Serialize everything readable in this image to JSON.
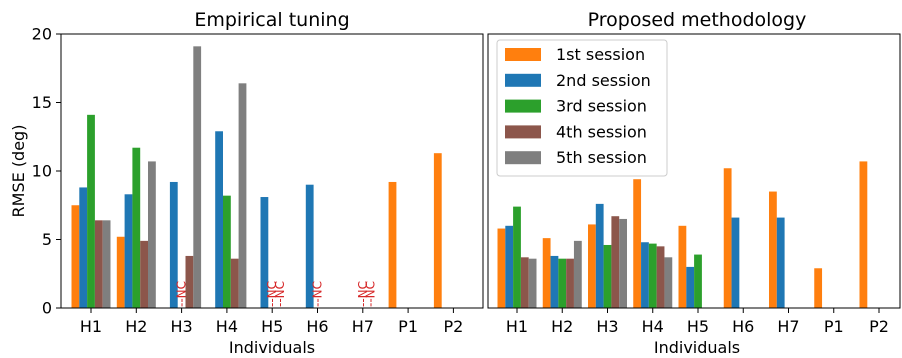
{
  "chart_data": [
    {
      "type": "bar",
      "title": "Empirical tuning",
      "xlabel": "Individuals",
      "ylabel": "RMSE (deg)",
      "ylim": [
        0,
        20
      ],
      "yticks": [
        0,
        5,
        10,
        15,
        20
      ],
      "categories": [
        "H1",
        "H2",
        "H3",
        "H4",
        "H5",
        "H6",
        "H7",
        "P1",
        "P2"
      ],
      "grid": false,
      "legend": "none",
      "series": [
        {
          "name": "1st session",
          "color": "#ff7f0e",
          "values": [
            7.5,
            5.2,
            null,
            null,
            null,
            null,
            null,
            9.2,
            11.3
          ]
        },
        {
          "name": "2nd session",
          "color": "#1f77b4",
          "values": [
            8.8,
            8.3,
            9.2,
            12.9,
            8.1,
            9.0,
            null,
            null,
            null
          ]
        },
        {
          "name": "3rd session",
          "color": "#2ca02c",
          "values": [
            14.1,
            11.7,
            null,
            8.2,
            null,
            null,
            null,
            null,
            null
          ]
        },
        {
          "name": "4th session",
          "color": "#8c564b",
          "values": [
            6.4,
            4.9,
            3.8,
            3.6,
            null,
            null,
            null,
            null,
            null
          ]
        },
        {
          "name": "5th session",
          "color": "#7f7f7f",
          "values": [
            6.4,
            10.7,
            19.1,
            16.4,
            null,
            null,
            null,
            null,
            null
          ]
        }
      ],
      "annotations": [
        {
          "text": "--NC",
          "category": "H3",
          "series": "3rd session"
        },
        {
          "text": "--NC",
          "category": "H5",
          "series": "3rd session"
        },
        {
          "text": "--NC",
          "category": "H5",
          "series": "4th session"
        },
        {
          "text": "--NC",
          "category": "H6",
          "series": "3rd session"
        },
        {
          "text": "--NC",
          "category": "H7",
          "series": "3rd session"
        },
        {
          "text": "--NC",
          "category": "H7",
          "series": "4th session"
        }
      ]
    },
    {
      "type": "bar",
      "title": "Proposed methodology",
      "xlabel": "Individuals",
      "ylabel": "",
      "ylim": [
        0,
        20
      ],
      "categories": [
        "H1",
        "H2",
        "H3",
        "H4",
        "H5",
        "H6",
        "H7",
        "P1",
        "P2"
      ],
      "grid": false,
      "legend": "upper-left",
      "series": [
        {
          "name": "1st session",
          "color": "#ff7f0e",
          "values": [
            5.8,
            5.1,
            6.1,
            9.4,
            6.0,
            10.2,
            8.5,
            2.9,
            10.7
          ]
        },
        {
          "name": "2nd session",
          "color": "#1f77b4",
          "values": [
            6.0,
            3.8,
            7.6,
            4.8,
            3.0,
            6.6,
            6.6,
            null,
            null
          ]
        },
        {
          "name": "3rd session",
          "color": "#2ca02c",
          "values": [
            7.4,
            3.6,
            4.6,
            4.7,
            3.9,
            null,
            null,
            null,
            null
          ]
        },
        {
          "name": "4th session",
          "color": "#8c564b",
          "values": [
            3.7,
            3.6,
            6.7,
            4.5,
            null,
            null,
            null,
            null,
            null
          ]
        },
        {
          "name": "5th session",
          "color": "#7f7f7f",
          "values": [
            3.6,
            4.9,
            6.5,
            3.7,
            null,
            null,
            null,
            null,
            null
          ]
        }
      ]
    }
  ]
}
